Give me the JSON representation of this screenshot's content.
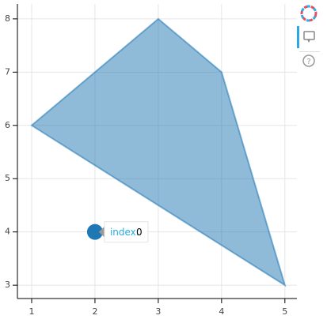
{
  "chart_data": {
    "type": "patch",
    "x": [
      1,
      3,
      4,
      5
    ],
    "values": [
      6,
      8,
      7,
      3
    ],
    "color": "#1f77b4",
    "point": {
      "x": 2,
      "y": 4,
      "color": "#1f77b4"
    },
    "tooltip": {
      "label": "index:",
      "value": 0
    },
    "xlim": [
      0.775,
      5.19
    ],
    "ylim": [
      2.75,
      8.28
    ],
    "xticks": [
      1,
      2,
      3,
      4,
      5
    ],
    "yticks": [
      3,
      4,
      5,
      6,
      7,
      8
    ],
    "grid": true
  }
}
